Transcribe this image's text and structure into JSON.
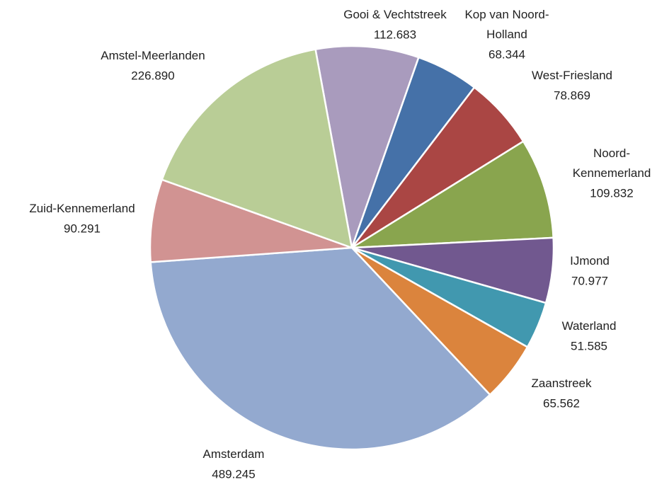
{
  "chart_data": {
    "type": "pie",
    "categories": [
      "Gooi & Vechtstreek",
      "Kop van Noord-Holland",
      "West-Friesland",
      "Noord-Kennemerland",
      "IJmond",
      "Waterland",
      "Zaanstreek",
      "Amsterdam",
      "Zuid-Kennemerland",
      "Amstel-Meerlanden"
    ],
    "values": [
      112683,
      68344,
      78869,
      109832,
      70977,
      51585,
      65562,
      489245,
      90291,
      226890
    ],
    "value_labels": [
      "112.683",
      "68.344",
      "78.869",
      "109.832",
      "70.977",
      "51.585",
      "65.562",
      "489.245",
      "90.291",
      "226.890"
    ],
    "colors": [
      "#a99bbd",
      "#4571a8",
      "#aa4644",
      "#89a54e",
      "#71588f",
      "#4198af",
      "#db843d",
      "#93a9cf",
      "#d19392",
      "#b9cd96"
    ]
  }
}
